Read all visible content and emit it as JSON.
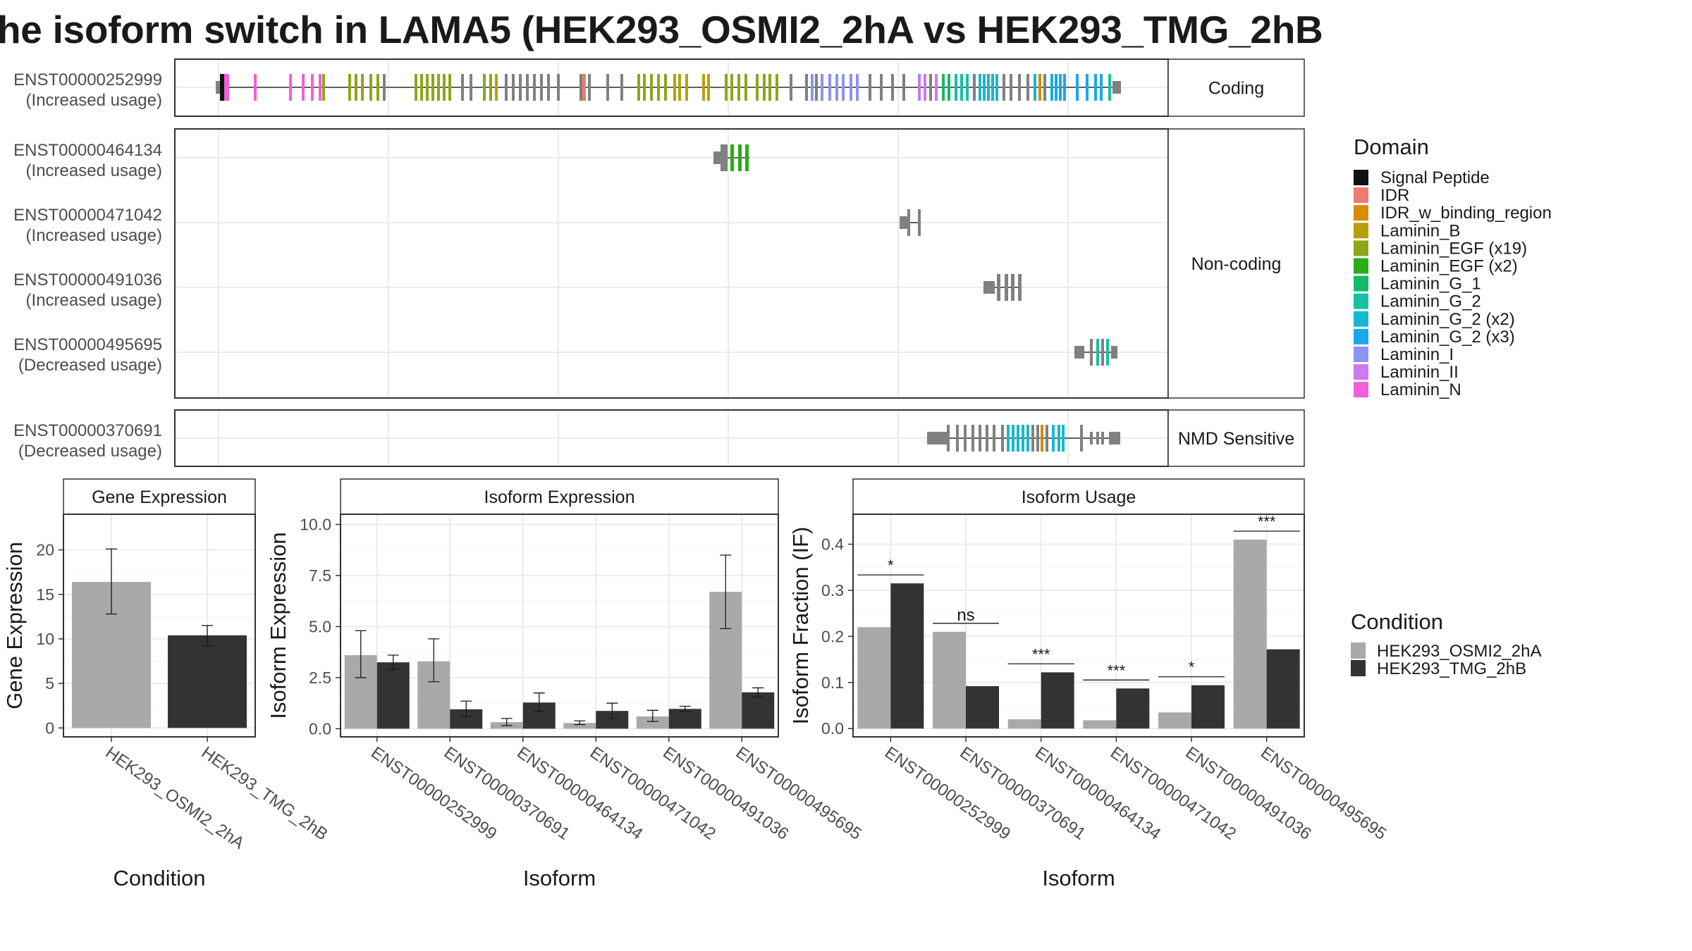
{
  "title": "he isoform switch in LAMA5 (HEK293_OSMI2_2hA vs HEK293_TMG_2hB",
  "colors": {
    "condition_a": "#a9a9a9",
    "condition_b": "#333333",
    "grey_segment": "#808080",
    "domain": {
      "Signal Peptide": "#111111",
      "IDR": "#f07b72",
      "IDR_w_binding_region": "#d78b0b",
      "Laminin_B": "#b8a00c",
      "Laminin_EGF (x19)": "#8fa51a",
      "Laminin_EGF (x2)": "#2aad15",
      "Laminin_G_1": "#14b96a",
      "Laminin_G_2": "#17bfa4",
      "Laminin_G_2 (x2)": "#15b8ce",
      "Laminin_G_2 (x3)": "#1aa8ea",
      "Laminin_I": "#8b94f2",
      "Laminin_II": "#cb79f0",
      "Laminin_N": "#f35fda"
    }
  },
  "chart_data": [
    {
      "type": "isoform_structure",
      "legend_title": "Domain",
      "legend": [
        "Signal Peptide",
        "IDR",
        "IDR_w_binding_region",
        "Laminin_B",
        "Laminin_EGF (x19)",
        "Laminin_EGF (x2)",
        "Laminin_G_1",
        "Laminin_G_2",
        "Laminin_G_2 (x2)",
        "Laminin_G_2 (x3)",
        "Laminin_I",
        "Laminin_II",
        "Laminin_N"
      ],
      "panels": [
        {
          "label": "Coding",
          "isoforms": [
            {
              "id": "ENST00000252999",
              "note": "(Increased usage)"
            }
          ]
        },
        {
          "label": "Non-coding",
          "isoforms": [
            {
              "id": "ENST00000464134",
              "note": "(Increased usage)"
            },
            {
              "id": "ENST00000471042",
              "note": "(Increased usage)"
            },
            {
              "id": "ENST00000491036",
              "note": "(Increased usage)"
            },
            {
              "id": "ENST00000495695",
              "note": "(Decreased usage)"
            }
          ]
        },
        {
          "label": "NMD Sensitive",
          "isoforms": [
            {
              "id": "ENST00000370691",
              "note": "(Decreased usage)"
            }
          ]
        }
      ]
    },
    {
      "type": "bar",
      "title": "Gene Expression",
      "xlabel": "Condition",
      "ylabel": "Gene Expression",
      "categories": [
        "HEK293_OSMI2_2hA",
        "HEK293_TMG_2hB"
      ],
      "values": [
        16.4,
        10.4
      ],
      "errors": [
        [
          12.8,
          20.1
        ],
        [
          9.2,
          11.5
        ]
      ],
      "ylim": [
        -1,
        24
      ],
      "yticks": [
        "0",
        "5",
        "10",
        "15",
        "20"
      ]
    },
    {
      "type": "bar",
      "title": "Isoform Expression",
      "xlabel": "Isoform",
      "ylabel": "Isoform Expression",
      "categories": [
        "ENST00000252999",
        "ENST00000370691",
        "ENST00000464134",
        "ENST00000471042",
        "ENST00000491036",
        "ENST00000495695"
      ],
      "series": [
        {
          "name": "HEK293_OSMI2_2hA",
          "values": [
            3.6,
            3.3,
            0.32,
            0.28,
            0.6,
            6.7
          ],
          "errors": [
            [
              2.5,
              4.8
            ],
            [
              2.3,
              4.4
            ],
            [
              0.15,
              0.5
            ],
            [
              0.2,
              0.38
            ],
            [
              0.35,
              0.9
            ],
            [
              4.9,
              8.5
            ]
          ]
        },
        {
          "name": "HEK293_TMG_2hB",
          "values": [
            3.25,
            0.95,
            1.28,
            0.87,
            0.97,
            1.78
          ],
          "errors": [
            [
              2.9,
              3.6
            ],
            [
              0.6,
              1.35
            ],
            [
              0.85,
              1.75
            ],
            [
              0.5,
              1.25
            ],
            [
              0.85,
              1.1
            ],
            [
              1.55,
              2.0
            ]
          ]
        }
      ],
      "ylim": [
        -0.4,
        10.5
      ],
      "yticks": [
        "0.0",
        "2.5",
        "5.0",
        "7.5",
        "10.0"
      ]
    },
    {
      "type": "bar",
      "title": "Isoform Usage",
      "xlabel": "Isoform",
      "ylabel": "Isoform Fraction (IF)",
      "categories": [
        "ENST00000252999",
        "ENST00000370691",
        "ENST00000464134",
        "ENST00000471042",
        "ENST00000491036",
        "ENST00000495695"
      ],
      "series": [
        {
          "name": "HEK293_OSMI2_2hA",
          "values": [
            0.22,
            0.21,
            0.02,
            0.018,
            0.035,
            0.41
          ]
        },
        {
          "name": "HEK293_TMG_2hB",
          "values": [
            0.315,
            0.092,
            0.122,
            0.087,
            0.094,
            0.172
          ]
        }
      ],
      "significance": [
        "*",
        "ns",
        "***",
        "***",
        "*",
        "***"
      ],
      "ylim": [
        -0.018,
        0.465
      ],
      "yticks": [
        "0.0",
        "0.1",
        "0.2",
        "0.3",
        "0.4"
      ]
    }
  ],
  "condition_legend": {
    "title": "Condition",
    "items": [
      "HEK293_OSMI2_2hA",
      "HEK293_TMG_2hB"
    ]
  }
}
